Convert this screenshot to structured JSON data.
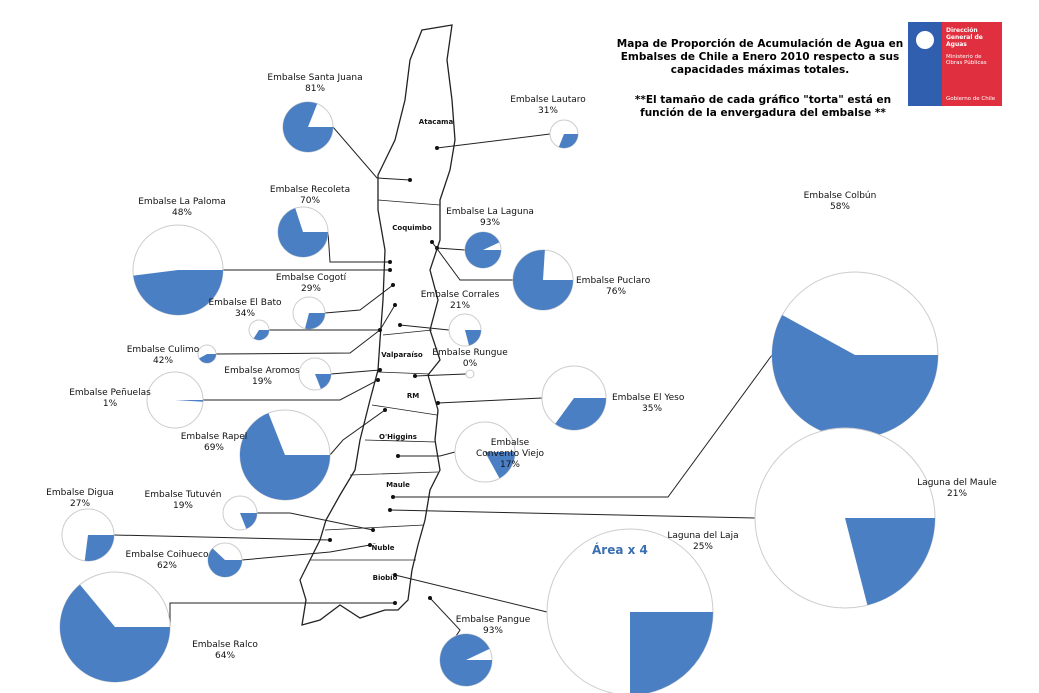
{
  "title": "Mapa de Proporción de Acumulación de Agua en Embalses de Chile a Enero 2010 respecto a sus capacidades máximas totales.",
  "note": "**El tamaño de cada gráfico \"torta\" está en función de la envergadura del embalse **",
  "area_note": "Área x 4",
  "logo": {
    "agency": "Dirección General de Aguas",
    "ministry": "Ministerio de Obras Públicas",
    "government": "Gobierno de Chile"
  },
  "regions": [
    "Atacama",
    "Coquimbo",
    "Valparaíso",
    "RM",
    "O'Higgins",
    "Maule",
    "Ñuble",
    "Biobío"
  ],
  "reservoirs": [
    {
      "name": "Embalse Santa Juana",
      "value": 81,
      "value_label": "81%"
    },
    {
      "name": "Embalse Lautaro",
      "value": 31,
      "value_label": "31%"
    },
    {
      "name": "Embalse La Paloma",
      "value": 48,
      "value_label": "48%"
    },
    {
      "name": "Embalse Recoleta",
      "value": 70,
      "value_label": "70%"
    },
    {
      "name": "Embalse La Laguna",
      "value": 93,
      "value_label": "93%"
    },
    {
      "name": "Embalse Puclaro",
      "value": 76,
      "value_label": "76%"
    },
    {
      "name": "Embalse Cogotí",
      "value": 29,
      "value_label": "29%"
    },
    {
      "name": "Embalse Corrales",
      "value": 21,
      "value_label": "21%"
    },
    {
      "name": "Embalse El Bato",
      "value": 34,
      "value_label": "34%"
    },
    {
      "name": "Embalse Culimo",
      "value": 42,
      "value_label": "42%"
    },
    {
      "name": "Embalse Rungue",
      "value": 0,
      "value_label": "0%"
    },
    {
      "name": "Embalse Aromos",
      "value": 19,
      "value_label": "19%"
    },
    {
      "name": "Embalse Peñuelas",
      "value": 1,
      "value_label": "1%"
    },
    {
      "name": "Embalse El Yeso",
      "value": 35,
      "value_label": "35%"
    },
    {
      "name": "Embalse Rapel",
      "value": 69,
      "value_label": "69%"
    },
    {
      "name": "Embalse Convento Viejo",
      "value": 17,
      "value_label": "17%"
    },
    {
      "name": "Embalse Colbún",
      "value": 58,
      "value_label": "58%"
    },
    {
      "name": "Laguna del Maule",
      "value": 21,
      "value_label": "21%"
    },
    {
      "name": "Embalse Digua",
      "value": 27,
      "value_label": "27%"
    },
    {
      "name": "Embalse Tutuvén",
      "value": 19,
      "value_label": "19%"
    },
    {
      "name": "Embalse Coihueco",
      "value": 62,
      "value_label": "62%"
    },
    {
      "name": "Laguna del Laja",
      "value": 25,
      "value_label": "25%"
    },
    {
      "name": "Embalse Ralco",
      "value": 64,
      "value_label": "64%"
    },
    {
      "name": "Embalse Pangue",
      "value": 93,
      "value_label": "93%"
    }
  ]
}
